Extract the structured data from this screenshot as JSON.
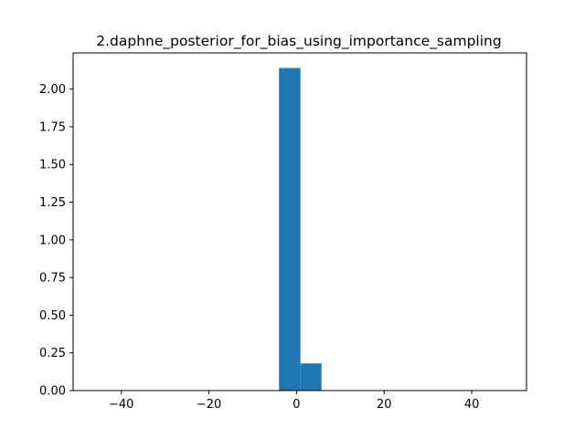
{
  "chart_data": {
    "type": "bar",
    "title": "2.daphne_posterior_for_bias_using_importance_sampling",
    "xlabel": "",
    "ylabel": "",
    "xlim": [
      -51,
      52.5
    ],
    "ylim": [
      0,
      2.24
    ],
    "x_ticks": [
      -40,
      -20,
      0,
      20,
      40
    ],
    "x_tick_labels": [
      "−40",
      "−20",
      "0",
      "20",
      "40"
    ],
    "y_ticks": [
      0.0,
      0.25,
      0.5,
      0.75,
      1.0,
      1.25,
      1.5,
      1.75,
      2.0
    ],
    "y_tick_labels": [
      "0.00",
      "0.25",
      "0.50",
      "0.75",
      "1.00",
      "1.25",
      "1.50",
      "1.75",
      "2.00"
    ],
    "bins": [
      {
        "x0": -4.0,
        "x1": 0.9,
        "value": 2.14
      },
      {
        "x0": 0.9,
        "x1": 5.7,
        "value": 0.18
      }
    ],
    "bar_color": "#1f77b4",
    "grid": false,
    "legend": "none"
  }
}
